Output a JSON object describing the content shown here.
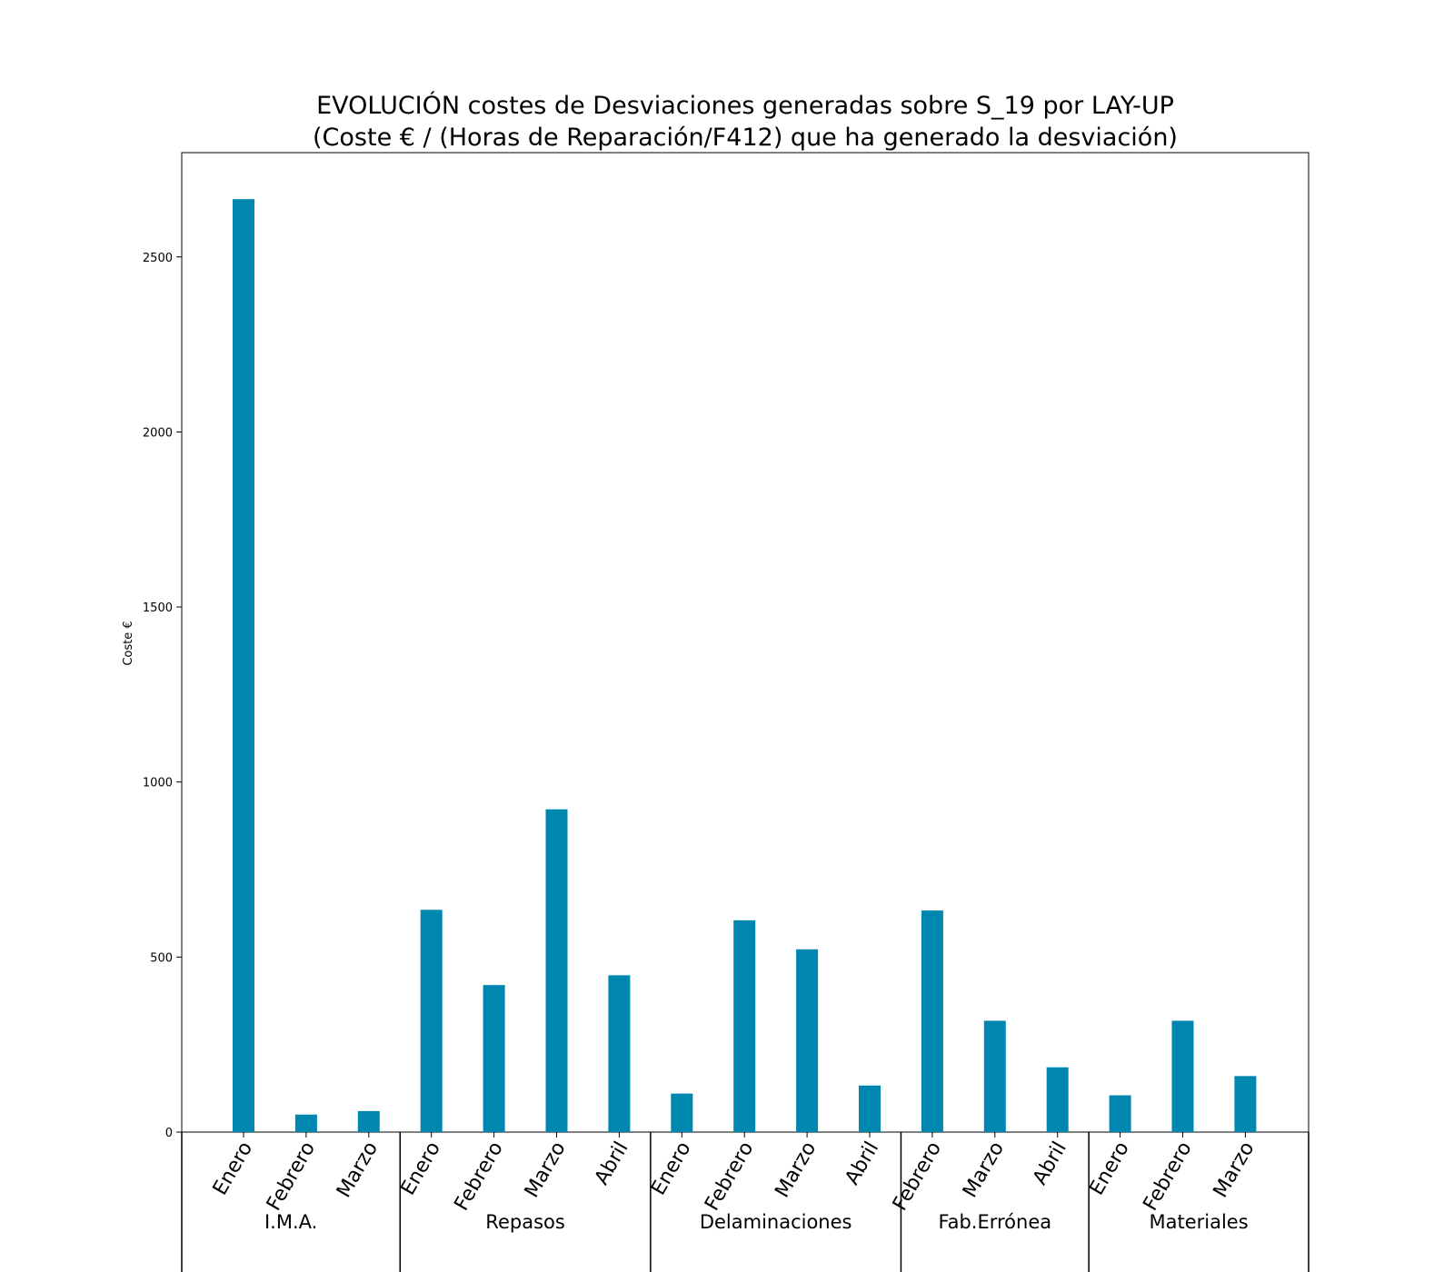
{
  "chart_data": {
    "type": "bar",
    "title": "EVOLUCIÓN costes de Desviaciones  generadas  sobre S_19 por LAY-UP",
    "subtitle": "(Coste € / (Horas de Reparación/F412) que ha generado la desviación)",
    "xlabel": "",
    "ylabel": "Coste €",
    "ylim": [
      0,
      2800
    ],
    "yticks": [
      0,
      500,
      1000,
      1500,
      2000,
      2500
    ],
    "bar_color": "#0087b0",
    "groups": [
      {
        "name": "I.M.A.",
        "categories": [
          "Enero",
          "Febrero",
          "Marzo"
        ],
        "values": [
          2665,
          50,
          60
        ]
      },
      {
        "name": "Repasos",
        "categories": [
          "Enero",
          "Febrero",
          "Marzo",
          "Abril"
        ],
        "values": [
          635,
          420,
          922,
          448
        ]
      },
      {
        "name": "Delaminaciones",
        "categories": [
          "Enero",
          "Febrero",
          "Marzo",
          "Abril"
        ],
        "values": [
          110,
          605,
          522,
          133
        ]
      },
      {
        "name": "Fab.Errónea",
        "categories": [
          "Febrero",
          "Marzo",
          "Abril"
        ],
        "values": [
          633,
          318,
          185
        ]
      },
      {
        "name": "Materiales",
        "categories": [
          "Enero",
          "Febrero",
          "Marzo"
        ],
        "values": [
          105,
          318,
          160
        ]
      }
    ]
  }
}
